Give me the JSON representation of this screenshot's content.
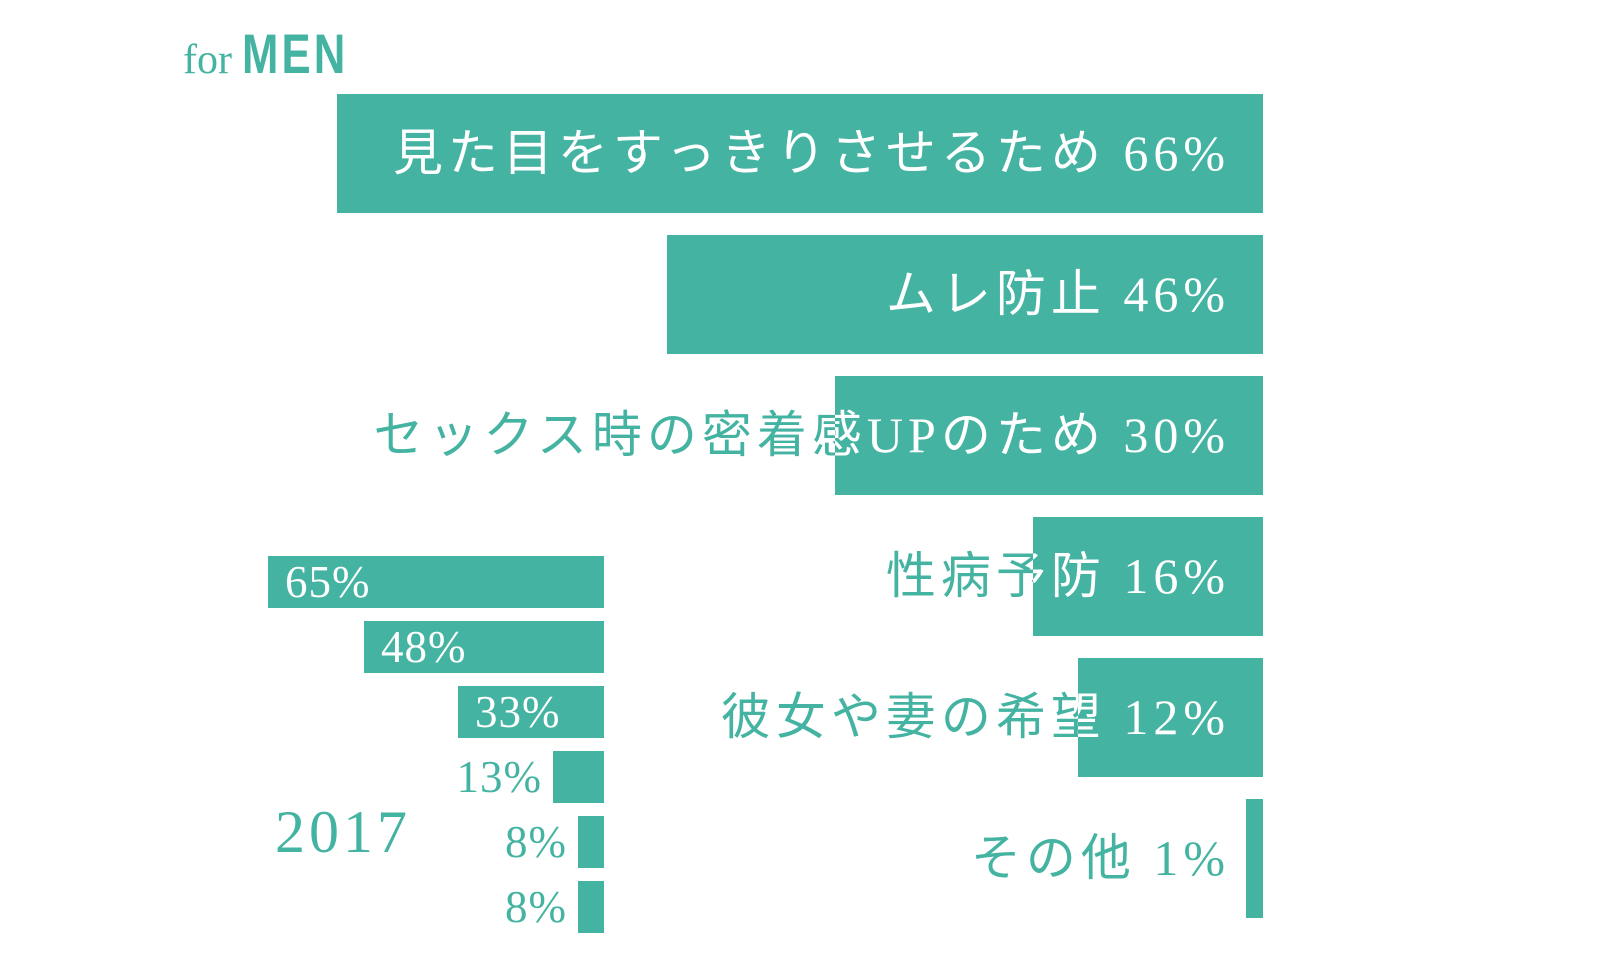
{
  "page": {
    "background_color": "#ffffff",
    "accent_color": "#45b3a2"
  },
  "header": {
    "title_prefix": "for",
    "title_main": "MEN"
  },
  "chart_data": [
    {
      "id": "main-reasons-chart",
      "type": "bar",
      "orientation": "horizontal",
      "unit": "%",
      "bar_color": "#45b3a2",
      "value_range": [
        0,
        66
      ],
      "grid": false,
      "legend": false,
      "categories": [
        "見た目をすっきりさせるため",
        "ムレ防止",
        "セックス時の密着感UPのため",
        "性病予防",
        "彼女や妻の希望",
        "その他"
      ],
      "values": [
        66,
        46,
        30,
        16,
        12,
        1
      ],
      "labels": [
        "見た目をすっきりさせるため 66%",
        "ムレ防止 46%",
        "セックス時の密着感UPのため 30%",
        "性病予防 16%",
        "彼女や妻の希望 12%",
        "その他 1%"
      ]
    },
    {
      "id": "year-2017-chart",
      "type": "bar",
      "orientation": "horizontal",
      "unit": "%",
      "bar_color": "#45b3a2",
      "value_range": [
        0,
        65
      ],
      "grid": false,
      "legend": false,
      "year_label": "2017",
      "values": [
        65,
        48,
        33,
        13,
        8,
        8
      ],
      "labels": [
        "65%",
        "48%",
        "33%",
        "13%",
        "8%",
        "8%"
      ]
    }
  ]
}
